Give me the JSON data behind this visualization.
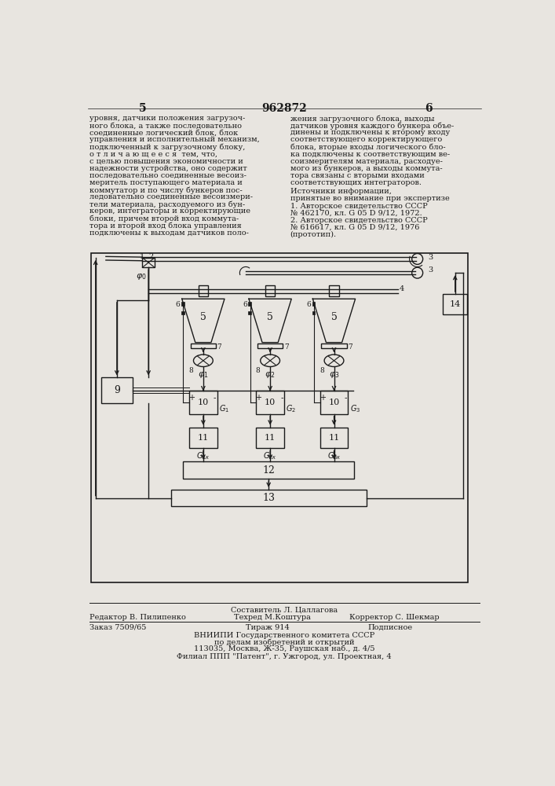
{
  "page_number_left": "5",
  "page_number_center": "962872",
  "page_number_right": "6",
  "background_color": "#e8e5e0",
  "text_color": "#1a1a1a",
  "left_column_text": [
    "уровня, датчики положения загрузоч-",
    "ного блока, а также последовательно",
    "соединенные логический блок, блок",
    "управления и исполнительный механизм,",
    "подключенный к загрузочному блоку,",
    "о т л и ч а ю щ е е с я  тем, что,",
    "с целью повышения экономичности и",
    "надежности устройства, оно содержит",
    "последовательно соединенные весоиз-",
    "меритель поступающего материала и",
    "коммутатор и по числу бункеров пос-",
    "ледовательно соединенные весоизмери-",
    "тели материала, расходуемого из бун-",
    "керов, интеграторы и корректирующие",
    "блоки, причем второй вход коммута-",
    "тора и второй вход блока управления",
    "подключены к выходам датчиков поло-"
  ],
  "right_column_text": [
    "жения загрузочного блока, выходы",
    "датчиков уровня каждого бункера объе-",
    "динены и подключены к второму входу",
    "соответствующего корректирующего",
    "блока, вторые входы логического бло-",
    "ка подключены к соответствующим ве-",
    "соизмерителям материала, расходуе-",
    "мого из бункеров, а выходы коммута-",
    "тора связаны с вторыми входами",
    "соответствующих интеграторов."
  ],
  "references_title": "Источники информации,",
  "references_subtitle": "принятые во внимание при экспертизе",
  "ref1": "1. Авторское свидетельство СССР",
  "ref1b": "№ 462170, кл. G 05 D 9/12, 1972.",
  "ref2": "2. Авторское свидетельство СССР",
  "ref2b": "№ 616617, кл. G 05 D 9/12, 1976",
  "ref2c": "(прототип).",
  "footer_composer": "Составитель Л. Цаллагова",
  "footer_editor": "Редактор В. Пилипенко",
  "footer_tech": "Техред М.Коштура",
  "footer_corrector": "Корректор С. Шекмар",
  "footer_order": "Заказ 7509/65",
  "footer_print": "Тираж 914",
  "footer_signed": "Подписное",
  "footer_org1": "ВНИИПИ Государственного комитета СССР",
  "footer_org2": "по делам изобретений и открытий",
  "footer_addr1": "113035, Москва, Ж-35, Раушская наб., д. 4/5",
  "footer_addr2": "Филиал ППП \"Патент\", г. Ужгород, ул. Проектная, 4"
}
